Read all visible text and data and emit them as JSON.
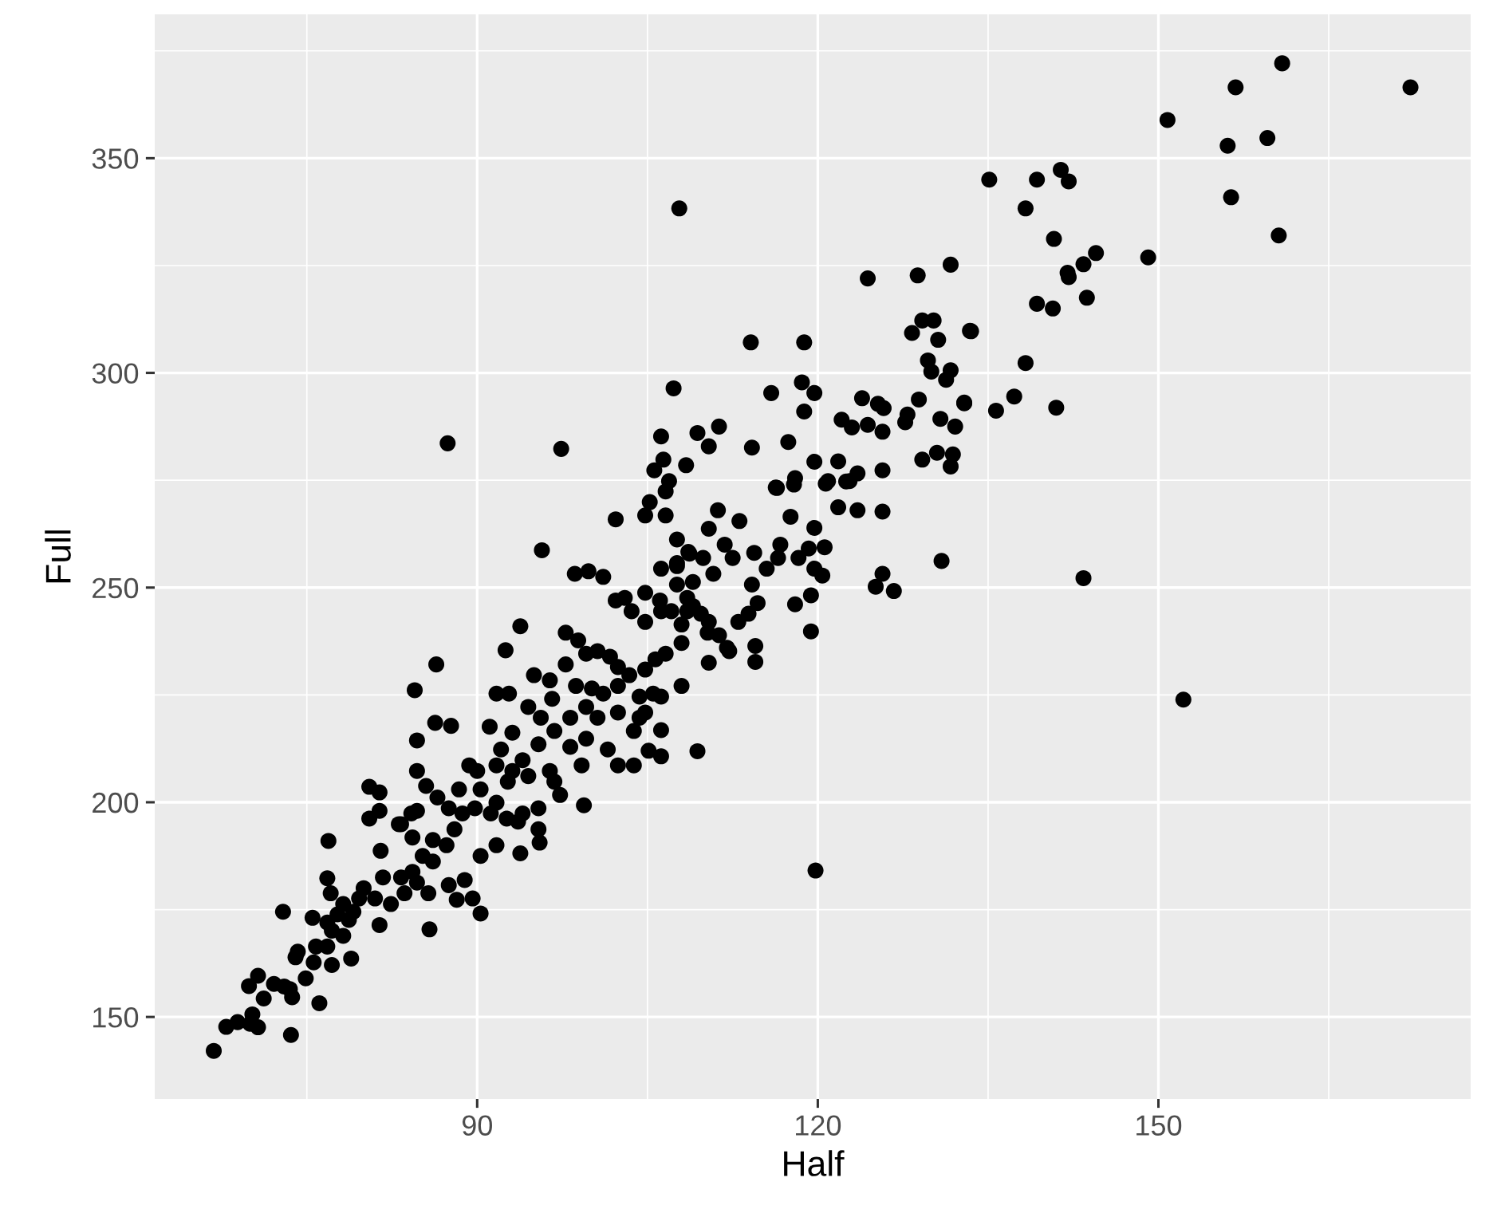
{
  "chart_data": {
    "type": "scatter",
    "xlabel": "Half",
    "ylabel": "Full",
    "color": "#000000",
    "marker": "circle",
    "grid": true,
    "xlim": [
      61.6,
      177.5
    ],
    "ylim": [
      130.9,
      383.5
    ],
    "xticks": [
      {
        "value": 75,
        "label": null
      },
      90,
      {
        "value": 105,
        "label": null
      },
      120,
      {
        "value": 135,
        "label": null
      },
      150,
      {
        "value": 165,
        "label": null
      }
    ],
    "yticks": [
      {
        "value": 175,
        "label": null
      },
      150,
      200,
      {
        "value": 225,
        "label": null
      },
      250,
      {
        "value": 275,
        "label": null
      },
      300,
      {
        "value": 325,
        "label": null
      },
      350,
      {
        "value": 375,
        "label": null
      }
    ],
    "x": [
      160.9,
      156.8,
      172.2,
      150.8,
      156.1,
      159.6,
      156.4,
      160.6,
      135.1,
      139.3,
      141.4,
      142.1,
      138.3,
      140.8,
      144.5,
      143.4,
      142.0,
      142.1,
      149.1,
      143.7,
      139.3,
      140.7,
      133.5,
      138.3,
      132.9,
      135.7,
      137.3,
      141.0,
      130.9,
      143.4,
      152.2,
      119.8,
      125.7,
      125.7,
      125.1,
      126.7,
      119.4,
      118.0,
      119.4,
      114.5,
      114.5,
      110.4,
      108.0,
      109.4,
      106.2,
      105.1,
      106.2,
      106.2,
      104.8,
      120.4,
      120.6,
      119.7,
      117.6,
      121.8,
      123.5,
      113.0,
      113.9,
      114.7,
      112.0,
      110.3,
      109.0,
      110.4,
      111.2,
      113.1,
      107.6,
      107.6,
      106.2,
      111.8,
      112.5,
      114.4,
      115.5,
      116.5,
      116.7,
      119.2,
      116.4,
      117.9,
      120.7,
      122.8,
      105.2,
      106.6,
      104.8,
      106.6,
      124.4,
      128.8,
      131.7,
      114.1,
      118.8,
      107.3,
      129.2,
      130.2,
      128.3,
      130.6,
      133.4,
      129.7,
      130.0,
      131.7,
      131.3,
      118.6,
      119.7,
      118.8,
      115.9,
      123.9,
      125.3,
      122.1,
      123.0,
      124.4,
      125.8,
      125.7,
      128.9,
      127.9,
      127.7,
      130.8,
      132.1,
      132.9,
      129.2,
      130.5,
      131.9,
      131.7,
      125.7,
      121.8,
      123.5,
      122.5,
      120.9,
      119.7,
      117.4,
      114.2,
      111.3,
      109.4,
      110.4,
      106.2,
      106.4,
      105.6,
      106.9,
      108.4,
      116.3,
      118.0,
      102.2,
      107.8,
      87.4,
      97.4,
      95.7,
      98.6,
      99.8,
      101.1,
      107.6,
      108.7,
      109.9,
      93.8,
      92.5,
      86.4,
      84.5,
      102.2,
      103.0,
      104.8,
      106.1,
      108.5,
      109.7,
      110.4,
      111.3,
      112.2,
      108.0,
      97.8,
      98.9,
      99.6,
      100.6,
      101.7,
      102.4,
      103.4,
      104.8,
      105.7,
      106.6,
      108.0,
      108.5,
      107.1,
      104.8,
      95.0,
      96.4,
      96.6,
      97.8,
      98.7,
      100.1,
      101.1,
      102.4,
      104.3,
      105.5,
      91.7,
      92.8,
      94.5,
      95.6,
      96.8,
      98.2,
      99.6,
      100.6,
      102.4,
      104.3,
      103.8,
      102.4,
      103.8,
      91.1,
      93.1,
      92.1,
      94.0,
      95.4,
      98.2,
      99.6,
      99.2,
      101.5,
      87.7,
      86.3,
      84.7,
      84.7,
      85.5,
      89.3,
      90.0,
      91.7,
      93.1,
      94.5,
      96.4,
      96.8,
      97.3,
      99.4,
      95.4,
      94.0,
      92.6,
      91.2,
      80.5,
      81.4,
      81.4,
      83.3,
      84.2,
      86.5,
      87.5,
      88.4,
      89.8,
      90.3,
      91.7,
      93.6,
      95.4,
      66.8,
      67.9,
      68.9,
      70.2,
      70.7,
      70.0,
      73.6,
      76.1,
      69.9,
      70.7,
      71.2,
      72.1,
      73.0,
      73.7,
      73.5,
      74.0,
      74.2,
      74.9,
      75.6,
      75.8,
      77.2,
      78.9,
      76.8,
      72.9,
      75.5,
      76.8,
      77.2,
      77.7,
      78.2,
      79.1,
      79.6,
      78.2,
      78.7,
      76.8,
      77.1,
      76.9,
      80.0,
      81.0,
      81.7,
      82.4,
      83.6,
      84.7,
      81.4,
      83.3,
      84.3,
      85.7,
      85.2,
      86.1,
      87.5,
      88.2,
      88.9,
      89.6,
      90.3,
      85.8,
      81.5,
      80.5,
      84.7,
      83.1,
      84.3,
      86.1,
      87.3,
      88.0,
      88.7,
      90.3,
      91.7,
      93.8,
      95.5,
      92.7,
      103.6,
      106.2,
      107.6,
      109.0,
      108.6,
      110.8,
      118.3,
      119.7,
      114.2
    ],
    "values": [
      372.1,
      366.5,
      366.5,
      358.9,
      352.9,
      354.7,
      340.9,
      332.0,
      345.0,
      345.0,
      347.3,
      344.6,
      338.3,
      331.2,
      327.9,
      325.3,
      323.3,
      322.3,
      326.9,
      317.5,
      316.1,
      315.0,
      309.7,
      302.3,
      292.9,
      291.2,
      294.5,
      291.9,
      256.2,
      252.2,
      223.9,
      184.1,
      267.7,
      253.2,
      250.2,
      249.2,
      248.2,
      246.1,
      239.8,
      236.4,
      232.7,
      232.5,
      227.1,
      211.9,
      210.7,
      212.0,
      216.8,
      224.6,
      220.9,
      252.8,
      259.4,
      263.9,
      266.5,
      268.7,
      268.0,
      242.0,
      243.9,
      246.4,
      236.0,
      239.5,
      251.3,
      263.7,
      268.0,
      265.5,
      261.2,
      255.7,
      254.4,
      260.0,
      256.9,
      258.1,
      254.4,
      256.9,
      260.0,
      259.1,
      273.2,
      274.0,
      274.2,
      274.8,
      269.9,
      266.8,
      266.8,
      272.4,
      322.0,
      322.7,
      325.2,
      307.1,
      307.1,
      296.4,
      312.2,
      312.2,
      309.3,
      307.7,
      309.8,
      302.9,
      300.3,
      300.6,
      298.4,
      297.8,
      295.3,
      291.0,
      295.3,
      294.1,
      292.8,
      289.1,
      287.3,
      287.9,
      291.8,
      286.3,
      293.8,
      290.3,
      288.5,
      289.3,
      287.5,
      293.1,
      279.8,
      281.4,
      281.0,
      278.2,
      277.3,
      279.4,
      276.6,
      274.7,
      274.8,
      279.3,
      283.9,
      282.6,
      287.5,
      286.0,
      282.9,
      285.2,
      279.8,
      277.3,
      274.8,
      278.5,
      273.3,
      275.5,
      265.9,
      338.3,
      283.6,
      282.3,
      258.7,
      253.2,
      253.8,
      252.5,
      255.0,
      257.9,
      256.9,
      241.0,
      235.4,
      232.1,
      226.1,
      247.0,
      247.6,
      248.8,
      247.0,
      247.6,
      243.9,
      242.0,
      238.9,
      235.2,
      241.4,
      239.5,
      237.7,
      234.6,
      235.2,
      233.9,
      231.5,
      229.6,
      230.9,
      233.3,
      234.6,
      237.1,
      244.5,
      244.5,
      242.0,
      229.6,
      228.4,
      224.1,
      232.1,
      227.1,
      226.5,
      225.3,
      227.1,
      224.6,
      225.3,
      225.3,
      225.3,
      222.2,
      219.7,
      216.6,
      219.7,
      222.2,
      219.7,
      220.9,
      219.7,
      216.6,
      208.6,
      208.6,
      217.6,
      216.2,
      212.3,
      209.8,
      213.5,
      212.9,
      214.8,
      208.6,
      212.3,
      217.8,
      218.5,
      214.4,
      207.3,
      203.8,
      208.6,
      207.3,
      208.6,
      207.3,
      206.1,
      207.3,
      204.8,
      201.7,
      199.3,
      198.6,
      197.4,
      196.2,
      197.4,
      203.6,
      202.3,
      198.0,
      194.9,
      197.4,
      201.1,
      198.6,
      203.0,
      198.6,
      203.0,
      199.9,
      195.5,
      193.7,
      142.1,
      147.7,
      148.8,
      150.6,
      147.6,
      148.4,
      145.8,
      153.2,
      157.2,
      159.6,
      154.3,
      157.7,
      157.1,
      154.6,
      156.5,
      163.9,
      165.2,
      159.0,
      162.7,
      166.4,
      162.1,
      163.6,
      166.4,
      174.5,
      173.1,
      172.0,
      170.1,
      173.9,
      176.3,
      174.5,
      177.6,
      168.9,
      172.6,
      182.3,
      178.8,
      191.0,
      180.0,
      177.6,
      182.5,
      176.3,
      178.8,
      181.3,
      171.4,
      182.5,
      183.8,
      178.8,
      187.5,
      186.2,
      180.7,
      177.3,
      181.9,
      177.6,
      174.1,
      170.4,
      188.7,
      196.2,
      198.0,
      194.9,
      191.8,
      191.2,
      190.0,
      193.7,
      197.4,
      187.5,
      190.0,
      188.1,
      190.6,
      204.8,
      244.5,
      244.5,
      250.7,
      245.7,
      258.3,
      253.2,
      256.9,
      254.4,
      250.7
    ]
  }
}
